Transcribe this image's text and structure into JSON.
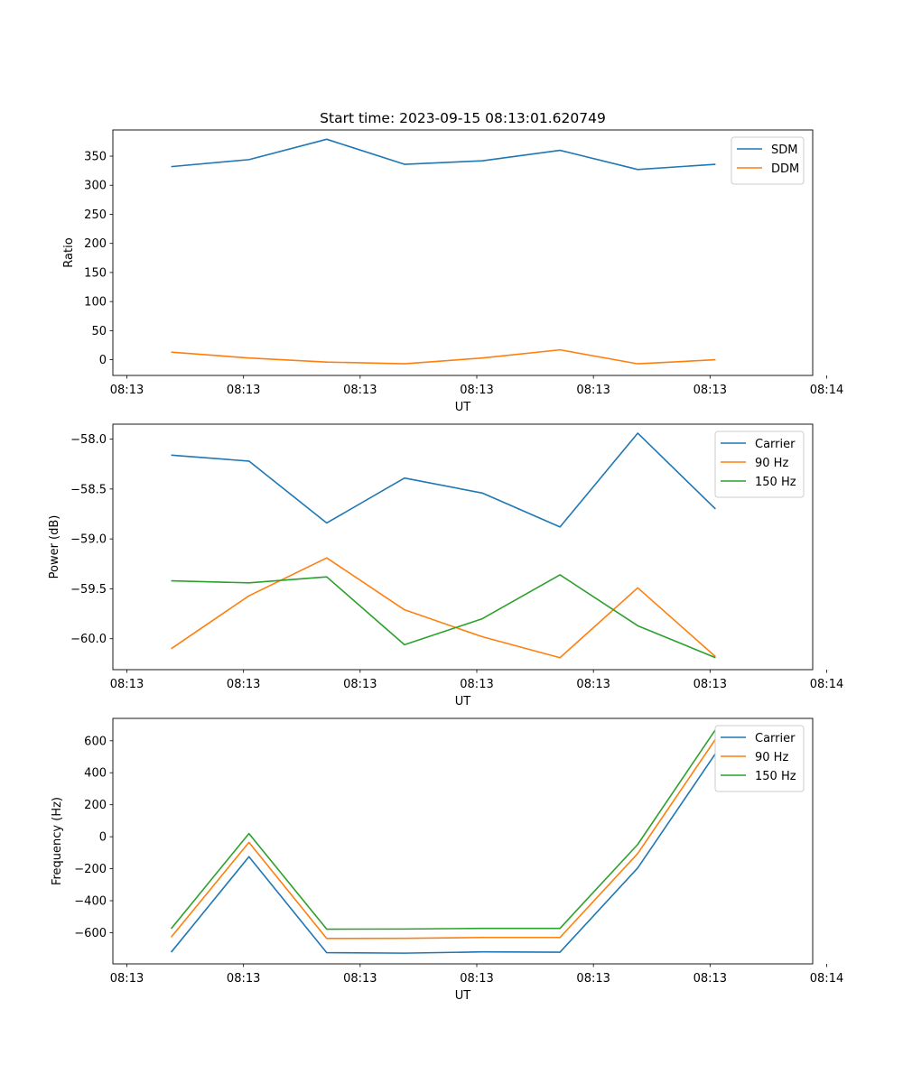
{
  "figure_title": "Start time: 2023-09-15 08:13:01.620749",
  "colors": {
    "blue": "#1f77b4",
    "orange": "#ff7f0e",
    "green": "#2ca02c"
  },
  "chart_data": [
    {
      "type": "line",
      "title": "Start time: 2023-09-15 08:13:01.620749",
      "xlabel": "UT",
      "ylabel": "Ratio",
      "x": [
        1,
        2,
        3,
        4,
        5,
        6,
        7,
        8
      ],
      "xlim": [
        0.25,
        9.25
      ],
      "xticks": [
        0.43,
        1.93,
        3.43,
        4.93,
        6.43,
        7.93,
        9.43
      ],
      "xtick_labels": [
        "08:13",
        "08:13",
        "08:13",
        "08:13",
        "08:13",
        "08:13",
        "08:14"
      ],
      "ylim": [
        -27,
        395
      ],
      "yticks": [
        0,
        50,
        100,
        150,
        200,
        250,
        300,
        350
      ],
      "ytick_labels": [
        "0",
        "50",
        "100",
        "150",
        "200",
        "250",
        "300",
        "350"
      ],
      "legend_position": "top-right",
      "series": [
        {
          "name": "SDM",
          "color": "#1f77b4",
          "values": [
            332,
            344,
            379,
            336,
            342,
            360,
            327,
            336
          ]
        },
        {
          "name": "DDM",
          "color": "#ff7f0e",
          "values": [
            13,
            3,
            -4,
            -7,
            3,
            17,
            -7,
            0
          ]
        }
      ]
    },
    {
      "type": "line",
      "title": "",
      "xlabel": "UT",
      "ylabel": "Power (dB)",
      "x": [
        1,
        2,
        3,
        4,
        5,
        6,
        7,
        8
      ],
      "xlim": [
        0.25,
        9.25
      ],
      "xticks": [
        0.43,
        1.93,
        3.43,
        4.93,
        6.43,
        7.93,
        9.43
      ],
      "xtick_labels": [
        "08:13",
        "08:13",
        "08:13",
        "08:13",
        "08:13",
        "08:13",
        "08:14"
      ],
      "ylim": [
        -60.31,
        -57.85
      ],
      "yticks": [
        -60.0,
        -59.5,
        -59.0,
        -58.5,
        -58.0
      ],
      "ytick_labels": [
        "−60.0",
        "−59.5",
        "−59.0",
        "−58.5",
        "−58.0"
      ],
      "legend_position": "top-right",
      "series": [
        {
          "name": "Carrier",
          "color": "#1f77b4",
          "values": [
            -58.16,
            -58.22,
            -58.84,
            -58.39,
            -58.54,
            -58.88,
            -57.94,
            -58.7
          ]
        },
        {
          "name": "90 Hz",
          "color": "#ff7f0e",
          "values": [
            -60.1,
            -59.57,
            -59.19,
            -59.71,
            -59.98,
            -60.19,
            -59.49,
            -60.18
          ]
        },
        {
          "name": "150 Hz",
          "color": "#2ca02c",
          "values": [
            -59.42,
            -59.44,
            -59.38,
            -60.06,
            -59.8,
            -59.36,
            -59.87,
            -60.19
          ]
        }
      ]
    },
    {
      "type": "line",
      "title": "",
      "xlabel": "UT",
      "ylabel": "Frequency (Hz)",
      "x": [
        1,
        2,
        3,
        4,
        5,
        6,
        7,
        8
      ],
      "xlim": [
        0.25,
        9.25
      ],
      "xticks": [
        0.43,
        1.93,
        3.43,
        4.93,
        6.43,
        7.93,
        9.43
      ],
      "xtick_labels": [
        "08:13",
        "08:13",
        "08:13",
        "08:13",
        "08:13",
        "08:13",
        "08:14"
      ],
      "ylim": [
        -795,
        740
      ],
      "yticks": [
        -600,
        -400,
        -200,
        0,
        200,
        400,
        600
      ],
      "ytick_labels": [
        "−600",
        "−400",
        "−200",
        "0",
        "200",
        "400",
        "600"
      ],
      "legend_position": "top-right",
      "series": [
        {
          "name": "Carrier",
          "color": "#1f77b4",
          "values": [
            -722,
            -125,
            -725,
            -728,
            -720,
            -722,
            -195,
            520
          ]
        },
        {
          "name": "90 Hz",
          "color": "#ff7f0e",
          "values": [
            -628,
            -35,
            -636,
            -635,
            -630,
            -630,
            -105,
            610
          ]
        },
        {
          "name": "150 Hz",
          "color": "#2ca02c",
          "values": [
            -575,
            20,
            -578,
            -577,
            -573,
            -573,
            -48,
            670
          ]
        }
      ]
    }
  ]
}
